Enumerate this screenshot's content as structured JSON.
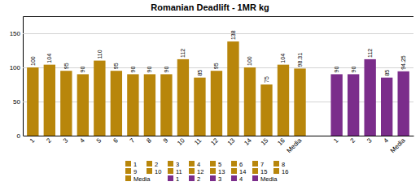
{
  "chart_data": {
    "type": "bar",
    "title": "Romanian Deadlift - 1MR kg",
    "categories": [
      "1",
      "2",
      "3",
      "4",
      "5",
      "6",
      "7",
      "8",
      "9",
      "10",
      "11",
      "12",
      "13",
      "14",
      "15",
      "16",
      "Media",
      "1",
      "2",
      "3",
      "4",
      "Media"
    ],
    "values": [
      100,
      104,
      95,
      90,
      110,
      95,
      90,
      90,
      90,
      112,
      85,
      95,
      138,
      100,
      75,
      104,
      98.31,
      90,
      90,
      112,
      85,
      94.25
    ],
    "colors": [
      "#B8860B",
      "#B8860B",
      "#B8860B",
      "#B8860B",
      "#B8860B",
      "#B8860B",
      "#B8860B",
      "#B8860B",
      "#B8860B",
      "#B8860B",
      "#B8860B",
      "#B8860B",
      "#B8860B",
      "#B8860B",
      "#B8860B",
      "#B8860B",
      "#B8860B",
      "#7B2D8B",
      "#7B2D8B",
      "#7B2D8B",
      "#7B2D8B",
      "#7B2D8B"
    ],
    "ylim": [
      0,
      175
    ],
    "yticks": [
      0,
      50,
      100,
      150
    ],
    "grid": true,
    "data_labels": true,
    "legend": "bottom"
  }
}
